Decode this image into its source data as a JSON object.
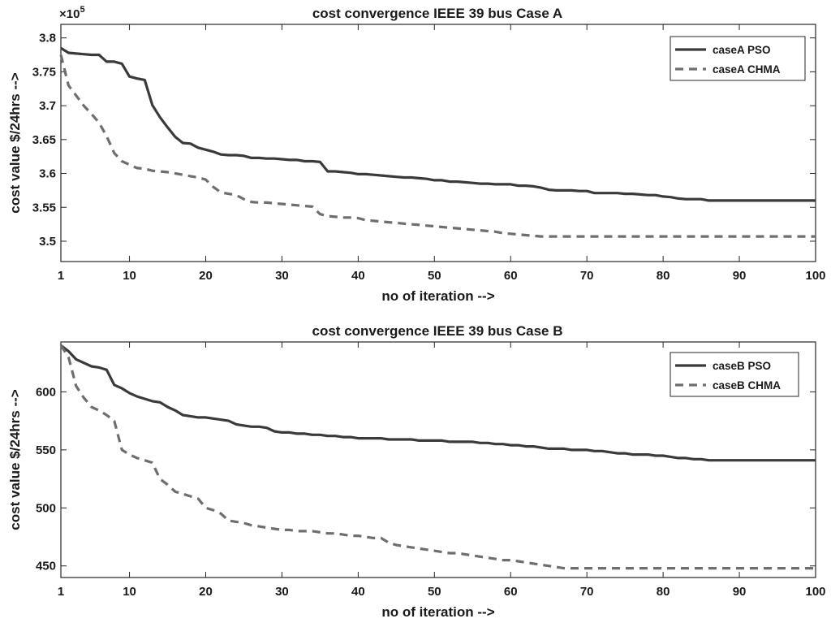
{
  "chart_data": [
    {
      "type": "line",
      "title": "cost convergence IEEE 39 bus Case A",
      "xlabel": "no of iteration -->",
      "ylabel": "cost value $/24hrs -->",
      "exponent_label": "×10",
      "exponent_power": "5",
      "xlim": [
        1,
        100
      ],
      "ylim": [
        3.47,
        3.82
      ],
      "xticks": [
        1,
        10,
        20,
        30,
        40,
        50,
        60,
        70,
        80,
        90,
        100
      ],
      "yticks": [
        3.5,
        3.55,
        3.6,
        3.65,
        3.7,
        3.75,
        3.8
      ],
      "ytick_labels": [
        "3.5",
        "3.55",
        "3.6",
        "3.65",
        "3.7",
        "3.75",
        "3.8"
      ],
      "legend_position": "top-right",
      "series": [
        {
          "name": "caseA PSO",
          "style": "solid",
          "color": "#3a3a3a",
          "x": [
            1,
            2,
            3,
            4,
            5,
            6,
            7,
            8,
            9,
            10,
            11,
            12,
            13,
            14,
            15,
            16,
            17,
            18,
            19,
            20,
            21,
            22,
            23,
            24,
            25,
            26,
            27,
            28,
            29,
            30,
            31,
            32,
            33,
            34,
            35,
            36,
            37,
            38,
            39,
            40,
            41,
            42,
            43,
            44,
            45,
            46,
            47,
            48,
            49,
            50,
            51,
            52,
            53,
            54,
            55,
            56,
            57,
            58,
            59,
            60,
            61,
            62,
            63,
            64,
            65,
            66,
            67,
            68,
            69,
            70,
            71,
            72,
            73,
            74,
            75,
            76,
            77,
            78,
            79,
            80,
            81,
            82,
            83,
            84,
            85,
            86,
            87,
            88,
            89,
            90,
            91,
            92,
            93,
            94,
            95,
            96,
            97,
            98,
            99,
            100
          ],
          "y": [
            3.785,
            3.778,
            3.777,
            3.776,
            3.775,
            3.775,
            3.765,
            3.765,
            3.762,
            3.743,
            3.74,
            3.738,
            3.701,
            3.683,
            3.668,
            3.654,
            3.645,
            3.644,
            3.638,
            3.635,
            3.632,
            3.628,
            3.627,
            3.627,
            3.626,
            3.623,
            3.623,
            3.622,
            3.622,
            3.621,
            3.62,
            3.62,
            3.618,
            3.618,
            3.617,
            3.603,
            3.603,
            3.602,
            3.601,
            3.599,
            3.599,
            3.598,
            3.597,
            3.596,
            3.595,
            3.594,
            3.594,
            3.593,
            3.592,
            3.59,
            3.59,
            3.588,
            3.588,
            3.587,
            3.586,
            3.585,
            3.585,
            3.584,
            3.584,
            3.584,
            3.582,
            3.582,
            3.581,
            3.579,
            3.576,
            3.575,
            3.575,
            3.575,
            3.574,
            3.574,
            3.571,
            3.571,
            3.571,
            3.571,
            3.57,
            3.57,
            3.569,
            3.568,
            3.568,
            3.566,
            3.565,
            3.563,
            3.562,
            3.562,
            3.562,
            3.56,
            3.56,
            3.56,
            3.56,
            3.56,
            3.56,
            3.56,
            3.56,
            3.56,
            3.56,
            3.56,
            3.56,
            3.56,
            3.56,
            3.56
          ]
        },
        {
          "name": "caseA CHMA",
          "style": "dashed",
          "color": "#6e6e6e",
          "x": [
            1,
            2,
            3,
            4,
            5,
            6,
            7,
            8,
            9,
            10,
            11,
            12,
            13,
            14,
            15,
            16,
            17,
            18,
            19,
            20,
            21,
            22,
            23,
            24,
            25,
            26,
            27,
            28,
            29,
            30,
            31,
            32,
            33,
            34,
            35,
            36,
            37,
            38,
            39,
            40,
            41,
            42,
            43,
            44,
            45,
            46,
            47,
            48,
            49,
            50,
            51,
            52,
            53,
            54,
            55,
            56,
            57,
            58,
            59,
            60,
            61,
            62,
            63,
            64,
            65,
            66,
            67,
            68,
            69,
            70,
            71,
            72,
            73,
            74,
            75,
            76,
            77,
            78,
            79,
            80,
            81,
            82,
            83,
            84,
            85,
            86,
            87,
            88,
            89,
            90,
            91,
            92,
            93,
            94,
            95,
            96,
            97,
            98,
            99,
            100
          ],
          "y": [
            3.775,
            3.73,
            3.715,
            3.7,
            3.688,
            3.675,
            3.655,
            3.63,
            3.618,
            3.613,
            3.608,
            3.607,
            3.604,
            3.603,
            3.602,
            3.6,
            3.598,
            3.596,
            3.594,
            3.591,
            3.58,
            3.572,
            3.57,
            3.568,
            3.562,
            3.558,
            3.557,
            3.557,
            3.556,
            3.555,
            3.554,
            3.553,
            3.552,
            3.551,
            3.54,
            3.537,
            3.536,
            3.535,
            3.535,
            3.534,
            3.531,
            3.53,
            3.529,
            3.528,
            3.527,
            3.526,
            3.525,
            3.524,
            3.523,
            3.522,
            3.521,
            3.52,
            3.519,
            3.518,
            3.517,
            3.516,
            3.515,
            3.514,
            3.512,
            3.511,
            3.51,
            3.509,
            3.508,
            3.507,
            3.507,
            3.507,
            3.507,
            3.507,
            3.507,
            3.507,
            3.507,
            3.507,
            3.507,
            3.507,
            3.507,
            3.507,
            3.507,
            3.507,
            3.507,
            3.507,
            3.507,
            3.507,
            3.507,
            3.507,
            3.507,
            3.507,
            3.507,
            3.507,
            3.507,
            3.507,
            3.507,
            3.507,
            3.507,
            3.507,
            3.507,
            3.507,
            3.507,
            3.507,
            3.507,
            3.507
          ]
        }
      ]
    },
    {
      "type": "line",
      "title": "cost convergence IEEE 39 bus Case B",
      "xlabel": "no of iteration -->",
      "ylabel": "cost value $/24hrs -->",
      "xlim": [
        1,
        100
      ],
      "ylim": [
        440,
        643
      ],
      "xticks": [
        1,
        10,
        20,
        30,
        40,
        50,
        60,
        70,
        80,
        90,
        100
      ],
      "yticks": [
        450,
        500,
        550,
        600
      ],
      "ytick_labels": [
        "450",
        "500",
        "550",
        "600"
      ],
      "legend_position": "top-right",
      "series": [
        {
          "name": "caseB PSO",
          "style": "solid",
          "color": "#3a3a3a",
          "x": [
            1,
            2,
            3,
            4,
            5,
            6,
            7,
            8,
            9,
            10,
            11,
            12,
            13,
            14,
            15,
            16,
            17,
            18,
            19,
            20,
            21,
            22,
            23,
            24,
            25,
            26,
            27,
            28,
            29,
            30,
            31,
            32,
            33,
            34,
            35,
            36,
            37,
            38,
            39,
            40,
            41,
            42,
            43,
            44,
            45,
            46,
            47,
            48,
            49,
            50,
            51,
            52,
            53,
            54,
            55,
            56,
            57,
            58,
            59,
            60,
            61,
            62,
            63,
            64,
            65,
            66,
            67,
            68,
            69,
            70,
            71,
            72,
            73,
            74,
            75,
            76,
            77,
            78,
            79,
            80,
            81,
            82,
            83,
            84,
            85,
            86,
            87,
            88,
            89,
            90,
            91,
            92,
            93,
            94,
            95,
            96,
            97,
            98,
            99,
            100
          ],
          "y": [
            640,
            635,
            628,
            625,
            622,
            621,
            619,
            606,
            603,
            599,
            596,
            594,
            592,
            591,
            587,
            584,
            580,
            579,
            578,
            578,
            577,
            576,
            575,
            572,
            571,
            570,
            570,
            569,
            566,
            565,
            565,
            564,
            564,
            563,
            563,
            562,
            562,
            561,
            561,
            560,
            560,
            560,
            560,
            559,
            559,
            559,
            559,
            558,
            558,
            558,
            558,
            557,
            557,
            557,
            557,
            556,
            556,
            555,
            555,
            554,
            554,
            553,
            553,
            552,
            551,
            551,
            551,
            550,
            550,
            550,
            549,
            549,
            548,
            547,
            547,
            546,
            546,
            546,
            545,
            545,
            544,
            543,
            543,
            542,
            542,
            541,
            541,
            541,
            541,
            541,
            541,
            541,
            541,
            541,
            541,
            541,
            541,
            541,
            541,
            541
          ]
        },
        {
          "name": "caseB CHMA",
          "style": "dashed",
          "color": "#6e6e6e",
          "x": [
            1,
            2,
            3,
            4,
            5,
            6,
            7,
            8,
            9,
            10,
            11,
            12,
            13,
            14,
            15,
            16,
            17,
            18,
            19,
            20,
            21,
            22,
            23,
            24,
            25,
            26,
            27,
            28,
            29,
            30,
            31,
            32,
            33,
            34,
            35,
            36,
            37,
            38,
            39,
            40,
            41,
            42,
            43,
            44,
            45,
            46,
            47,
            48,
            49,
            50,
            51,
            52,
            53,
            54,
            55,
            56,
            57,
            58,
            59,
            60,
            61,
            62,
            63,
            64,
            65,
            66,
            67,
            68,
            69,
            70,
            71,
            72,
            73,
            74,
            75,
            76,
            77,
            78,
            79,
            80,
            81,
            82,
            83,
            84,
            85,
            86,
            87,
            88,
            89,
            90,
            91,
            92,
            93,
            94,
            95,
            96,
            97,
            98,
            99,
            100
          ],
          "y": [
            640,
            630,
            605,
            595,
            587,
            584,
            580,
            575,
            550,
            546,
            543,
            541,
            539,
            525,
            520,
            514,
            512,
            510,
            508,
            500,
            498,
            495,
            489,
            488,
            487,
            485,
            484,
            483,
            482,
            481,
            481,
            480,
            480,
            480,
            479,
            478,
            478,
            477,
            476,
            476,
            475,
            474,
            474,
            470,
            468,
            467,
            466,
            465,
            464,
            463,
            462,
            461,
            461,
            460,
            459,
            458,
            457,
            456,
            455,
            455,
            454,
            453,
            452,
            451,
            450,
            449,
            448,
            448,
            448,
            448,
            448,
            448,
            448,
            448,
            448,
            448,
            448,
            448,
            448,
            448,
            448,
            448,
            448,
            448,
            448,
            448,
            448,
            448,
            448,
            448,
            448,
            448,
            448,
            448,
            448,
            448,
            448,
            448,
            448,
            448
          ]
        }
      ]
    }
  ]
}
